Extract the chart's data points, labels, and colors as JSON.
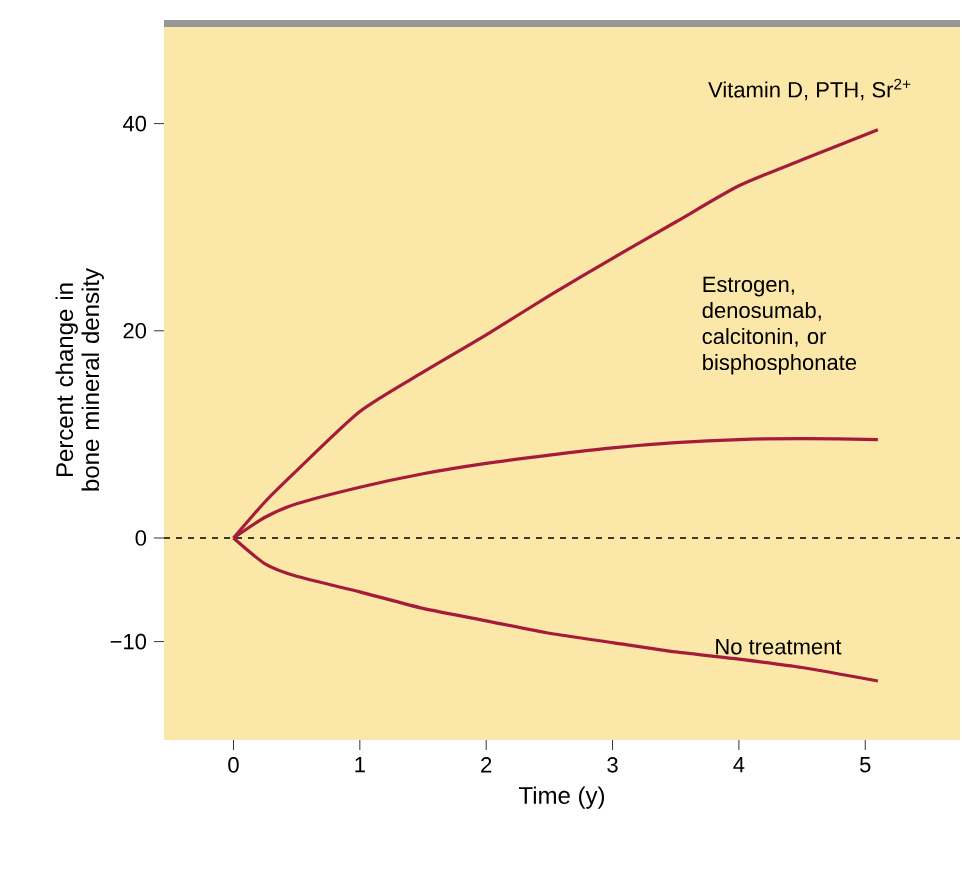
{
  "chart_data": {
    "type": "line",
    "xlabel": "Time (y)",
    "ylabel": "Percent change in bone mineral density",
    "xlim": [
      -0.55,
      5.75
    ],
    "ylim": [
      -19.5,
      50
    ],
    "xticks": [
      0,
      1,
      2,
      3,
      4,
      5
    ],
    "yticks": [
      {
        "value": -10,
        "label": "−10"
      },
      0,
      20,
      40
    ],
    "legend": false,
    "grid": false,
    "marker": "none",
    "line_style": "solid",
    "ref_lines": [
      {
        "axis": "y",
        "value": 0,
        "color": "#000000",
        "line_style": "dashed"
      }
    ],
    "series": [
      {
        "name": "Vitamin D, PTH, Sr$^{2+}$",
        "color": "#a51c3a",
        "x": [
          0,
          0.25,
          0.5,
          1,
          1.5,
          2,
          2.5,
          3,
          3.5,
          4,
          4.5,
          5.1
        ],
        "values": [
          0,
          3.5,
          6.5,
          12.2,
          16,
          19.6,
          23.4,
          27,
          30.5,
          34,
          36.5,
          39.4
        ]
      },
      {
        "name": "Estrogen, denosumab, calcitonin, or bisphosphonate",
        "color": "#a51c3a",
        "x": [
          0,
          0.25,
          0.5,
          1,
          1.5,
          2,
          2.5,
          3,
          3.5,
          4,
          4.5,
          5.1
        ],
        "values": [
          0,
          2,
          3.3,
          4.9,
          6.2,
          7.2,
          8,
          8.7,
          9.2,
          9.5,
          9.6,
          9.5
        ]
      },
      {
        "name": "No treatment",
        "color": "#a51c3a",
        "x": [
          0,
          0.25,
          0.5,
          1,
          1.5,
          2,
          2.5,
          3,
          3.5,
          4,
          4.5,
          5.1
        ],
        "values": [
          0,
          -2.5,
          -3.7,
          -5.2,
          -6.8,
          -8,
          -9.2,
          -10.1,
          -11,
          -11.7,
          -12.5,
          -13.8
        ]
      }
    ]
  }
}
